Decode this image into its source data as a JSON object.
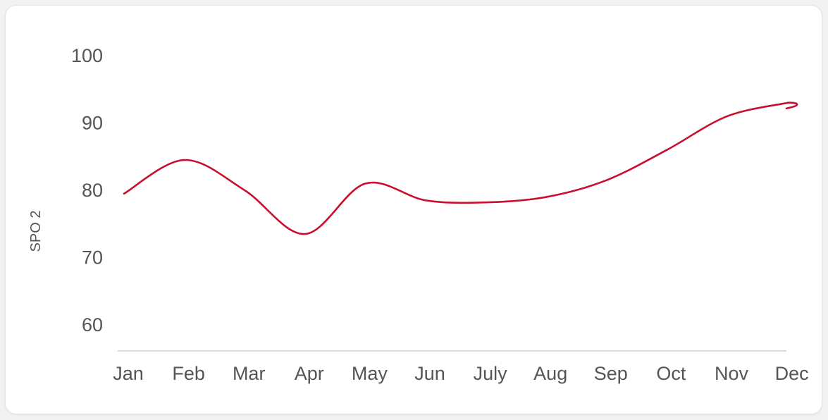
{
  "chart_data": {
    "type": "line",
    "title": "",
    "xlabel": "",
    "ylabel": "SPO 2",
    "categories": [
      "Jan",
      "Feb",
      "Mar",
      "Apr",
      "May",
      "Jun",
      "July",
      "Aug",
      "Sep",
      "Oct",
      "Nov",
      "Dec"
    ],
    "series": [
      {
        "values": [
          79.5,
          84.5,
          80,
          73.5,
          81,
          78.5,
          78.2,
          79,
          81.5,
          86,
          91,
          93
        ]
      }
    ],
    "ylim": [
      56,
      100
    ],
    "yticks": [
      60,
      70,
      80,
      90,
      100
    ],
    "grid": false,
    "legend": "none",
    "line_color": "#c8102e",
    "axis_color": "#d0d0d0"
  }
}
